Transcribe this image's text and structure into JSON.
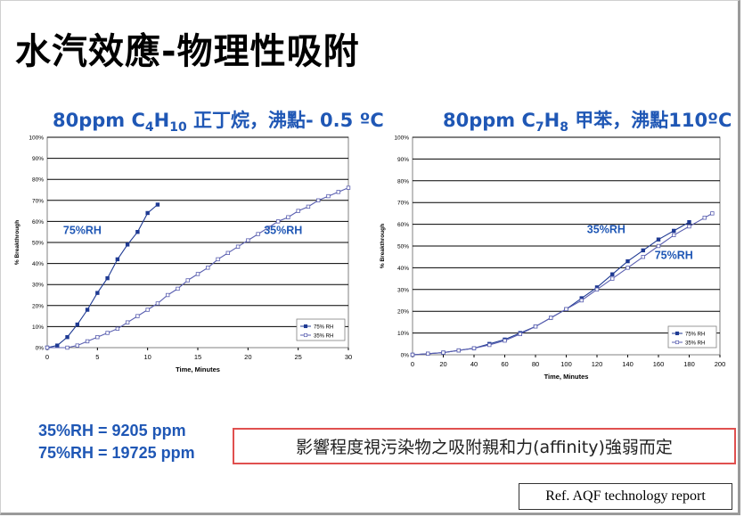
{
  "slide": {
    "title": "水汽效應-物理性吸附",
    "left_subtitle": {
      "prefix": "80ppm  C",
      "sub1": "4",
      "mid": "H",
      "sub2": "10",
      "suffix": " 正丁烷，沸點- 0.5 ºC"
    },
    "right_subtitle": {
      "prefix": "80ppm  C",
      "sub1": "7",
      "mid": "H",
      "sub2": "8",
      "suffix": " 甲苯，沸點110ºC"
    },
    "ppm_line1": "35%RH = 9205 ppm",
    "ppm_line2": "75%RH = 19725 ppm",
    "note": "影響程度視污染物之吸附親和力(affinity)強弱而定",
    "reference": "Ref. AQF technology report"
  },
  "chart_data": [
    {
      "type": "line",
      "xlabel": "Time, Minutes",
      "ylabel": "% Breakthrough",
      "xlim": [
        0,
        30
      ],
      "ylim": [
        0,
        100
      ],
      "xticks": [
        0,
        5,
        10,
        15,
        20,
        25,
        30
      ],
      "yticks": [
        0,
        10,
        20,
        30,
        40,
        50,
        60,
        70,
        80,
        90,
        100
      ],
      "ytick_labels": [
        "0%",
        "10%",
        "20%",
        "30%",
        "40%",
        "50%",
        "60%",
        "70%",
        "80%",
        "90%",
        "100%"
      ],
      "grid": true,
      "legend_position": "bottom-right",
      "series": [
        {
          "name": "75% RH",
          "color": "#1f3a93",
          "marker": "filled-square",
          "x": [
            0,
            1,
            2,
            3,
            4,
            5,
            6,
            7,
            8,
            9,
            10,
            11
          ],
          "y": [
            0,
            1,
            5,
            11,
            18,
            26,
            33,
            42,
            49,
            55,
            64,
            68
          ]
        },
        {
          "name": "35% RH",
          "color": "#5a5fb0",
          "marker": "open-square",
          "x": [
            0,
            2,
            3,
            4,
            5,
            6,
            7,
            8,
            9,
            10,
            11,
            12,
            13,
            14,
            15,
            16,
            17,
            18,
            19,
            20,
            21,
            22,
            23,
            24,
            25,
            26,
            27,
            28,
            29,
            30
          ],
          "y": [
            0,
            0,
            1,
            3,
            5,
            7,
            9,
            12,
            15,
            18,
            21,
            25,
            28,
            32,
            35,
            38,
            42,
            45,
            48,
            51,
            54,
            57,
            60,
            62,
            65,
            67,
            70,
            72,
            74,
            76
          ]
        }
      ],
      "annotations": [
        {
          "text": "75%RH",
          "x": 3.5,
          "y": 54,
          "color": "#1f57b5"
        },
        {
          "text": "35%RH",
          "x": 23.5,
          "y": 54,
          "color": "#1f57b5"
        }
      ]
    },
    {
      "type": "line",
      "xlabel": "Time, Minutes",
      "ylabel": "% Breakthrough",
      "xlim": [
        0,
        200
      ],
      "ylim": [
        0,
        100
      ],
      "xticks": [
        0,
        20,
        40,
        60,
        80,
        100,
        120,
        140,
        160,
        180,
        200
      ],
      "yticks": [
        0,
        10,
        20,
        30,
        40,
        50,
        60,
        70,
        80,
        90,
        100
      ],
      "ytick_labels": [
        "0%",
        "10%",
        "20%",
        "30%",
        "40%",
        "50%",
        "60%",
        "70%",
        "80%",
        "90%",
        "100%"
      ],
      "grid": true,
      "legend_position": "bottom-right",
      "series": [
        {
          "name": "75% RH",
          "color": "#1f3a93",
          "marker": "filled-square",
          "x": [
            0,
            10,
            20,
            30,
            40,
            50,
            60,
            70,
            80,
            90,
            100,
            110,
            120,
            130,
            140,
            150,
            160,
            170,
            180
          ],
          "y": [
            0,
            0.5,
            1,
            2,
            3,
            5,
            7,
            10,
            13,
            17,
            21,
            26,
            31,
            37,
            43,
            48,
            53,
            57,
            61
          ]
        },
        {
          "name": "35% RH",
          "color": "#5a5fb0",
          "marker": "open-square",
          "x": [
            0,
            10,
            20,
            30,
            40,
            50,
            60,
            70,
            80,
            90,
            100,
            110,
            120,
            130,
            140,
            150,
            160,
            170,
            180,
            190,
            195
          ],
          "y": [
            0,
            0.5,
            1,
            2,
            3,
            4.5,
            6.5,
            9.5,
            13,
            17,
            21,
            25,
            30,
            35,
            40,
            45,
            50,
            55,
            59,
            63,
            65
          ]
        }
      ],
      "annotations": [
        {
          "text": "35%RH",
          "x": 126,
          "y": 56,
          "color": "#1f57b5"
        },
        {
          "text": "75%RH",
          "x": 170,
          "y": 44,
          "color": "#1f57b5"
        }
      ]
    }
  ]
}
